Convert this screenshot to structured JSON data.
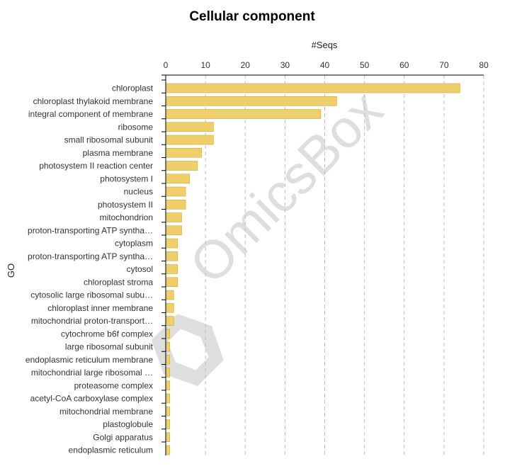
{
  "chart_data": {
    "type": "bar",
    "orientation": "horizontal",
    "title": "Cellular component",
    "xlabel": "#Seqs",
    "ylabel": "GO",
    "xlim": [
      0,
      80
    ],
    "xticks": [
      0,
      10,
      20,
      30,
      40,
      50,
      60,
      70,
      80
    ],
    "x_axis_position": "top",
    "grid": "vertical dashed",
    "bar_color": "#eecf6a",
    "categories": [
      "chloroplast",
      "chloroplast thylakoid membrane",
      "integral component of membrane",
      "ribosome",
      "small ribosomal subunit",
      "plasma membrane",
      "photosystem II reaction center",
      "photosystem I",
      "nucleus",
      "photosystem II",
      "mitochondrion",
      "proton-transporting ATP syntha…",
      "cytoplasm",
      "proton-transporting ATP syntha…",
      "cytosol",
      "chloroplast stroma",
      "cytosolic large ribosomal subu…",
      "chloroplast inner membrane",
      "mitochondrial proton-transport…",
      "cytochrome b6f complex",
      "large ribosomal subunit",
      "endoplasmic reticulum membrane",
      "mitochondrial large ribosomal …",
      "proteasome complex",
      "acetyl-CoA carboxylase complex",
      "mitochondrial membrane",
      "plastoglobule",
      "Golgi apparatus",
      "endoplasmic reticulum"
    ],
    "values": [
      74,
      43,
      39,
      12,
      12,
      9,
      8,
      6,
      5,
      5,
      4,
      4,
      3,
      3,
      3,
      3,
      2,
      2,
      2,
      1,
      1,
      1,
      1,
      1,
      1,
      1,
      1,
      1,
      1
    ]
  },
  "watermark": "OmicsBox"
}
